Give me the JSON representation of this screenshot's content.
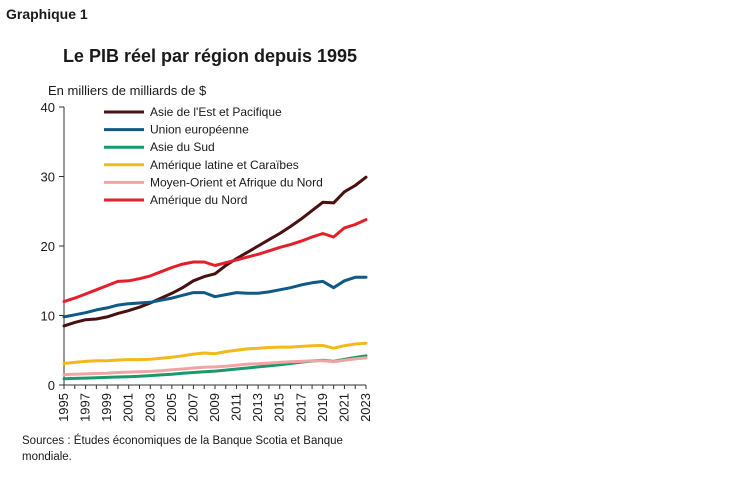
{
  "header": {
    "graph_label": "Graphique 1"
  },
  "footer": {
    "source": "Sources : Études économiques de la Banque Scotia et Banque mondiale."
  },
  "chart_data": {
    "type": "line",
    "title": "Le PIB réel par région depuis 1995",
    "ylabel": "En milliers de milliards de $",
    "xlabel": "",
    "ylim": [
      0,
      40
    ],
    "yticks": [
      0,
      10,
      20,
      30,
      40
    ],
    "xticks": [
      1995,
      1997,
      1999,
      2001,
      2003,
      2005,
      2007,
      2009,
      2011,
      2013,
      2015,
      2017,
      2019,
      2021,
      2023
    ],
    "grid": false,
    "legend_position": "top-left",
    "x": [
      1995,
      1996,
      1997,
      1998,
      1999,
      2000,
      2001,
      2002,
      2003,
      2004,
      2005,
      2006,
      2007,
      2008,
      2009,
      2010,
      2011,
      2012,
      2013,
      2014,
      2015,
      2016,
      2017,
      2018,
      2019,
      2020,
      2021,
      2022,
      2023
    ],
    "series": [
      {
        "name": "Asie de l'Est et Pacifique",
        "color": "#4a1010",
        "values": [
          8.5,
          9.0,
          9.4,
          9.5,
          9.8,
          10.3,
          10.7,
          11.2,
          11.8,
          12.5,
          13.2,
          14.0,
          15.0,
          15.6,
          16.0,
          17.2,
          18.2,
          19.1,
          20.0,
          20.9,
          21.8,
          22.8,
          23.9,
          25.1,
          26.3,
          26.2,
          27.8,
          28.7,
          29.9
        ]
      },
      {
        "name": "Union européenne",
        "color": "#0e5a85",
        "values": [
          9.8,
          10.1,
          10.4,
          10.8,
          11.1,
          11.5,
          11.7,
          11.8,
          11.9,
          12.2,
          12.5,
          12.9,
          13.3,
          13.3,
          12.7,
          13.0,
          13.3,
          13.2,
          13.2,
          13.4,
          13.7,
          14.0,
          14.4,
          14.7,
          14.9,
          14.0,
          15.0,
          15.5,
          15.5
        ]
      },
      {
        "name": "Asie du Sud",
        "color": "#1a9a6c",
        "values": [
          0.9,
          0.95,
          1.0,
          1.05,
          1.1,
          1.15,
          1.2,
          1.25,
          1.35,
          1.45,
          1.55,
          1.7,
          1.8,
          1.9,
          2.0,
          2.15,
          2.3,
          2.45,
          2.6,
          2.75,
          2.9,
          3.1,
          3.3,
          3.45,
          3.55,
          3.4,
          3.7,
          3.95,
          4.2
        ]
      },
      {
        "name": "Amérique latine et Caraïbes",
        "color": "#f2b81c",
        "values": [
          3.1,
          3.25,
          3.4,
          3.5,
          3.5,
          3.6,
          3.65,
          3.65,
          3.7,
          3.85,
          4.0,
          4.2,
          4.45,
          4.6,
          4.5,
          4.8,
          5.0,
          5.2,
          5.3,
          5.4,
          5.45,
          5.45,
          5.55,
          5.65,
          5.7,
          5.3,
          5.65,
          5.9,
          6.0
        ]
      },
      {
        "name": "Moyen-Orient et Afrique du Nord",
        "color": "#f0a5a5",
        "values": [
          1.5,
          1.55,
          1.6,
          1.65,
          1.7,
          1.8,
          1.85,
          1.9,
          1.95,
          2.05,
          2.2,
          2.3,
          2.45,
          2.55,
          2.6,
          2.7,
          2.85,
          3.0,
          3.05,
          3.15,
          3.25,
          3.35,
          3.4,
          3.5,
          3.5,
          3.35,
          3.55,
          3.75,
          3.9
        ]
      },
      {
        "name": "Amérique du Nord",
        "color": "#e3202a",
        "values": [
          12.0,
          12.5,
          13.1,
          13.7,
          14.3,
          14.9,
          15.0,
          15.3,
          15.7,
          16.3,
          16.9,
          17.4,
          17.7,
          17.7,
          17.2,
          17.6,
          18.0,
          18.4,
          18.8,
          19.3,
          19.8,
          20.2,
          20.7,
          21.3,
          21.8,
          21.3,
          22.6,
          23.1,
          23.8
        ]
      }
    ]
  }
}
